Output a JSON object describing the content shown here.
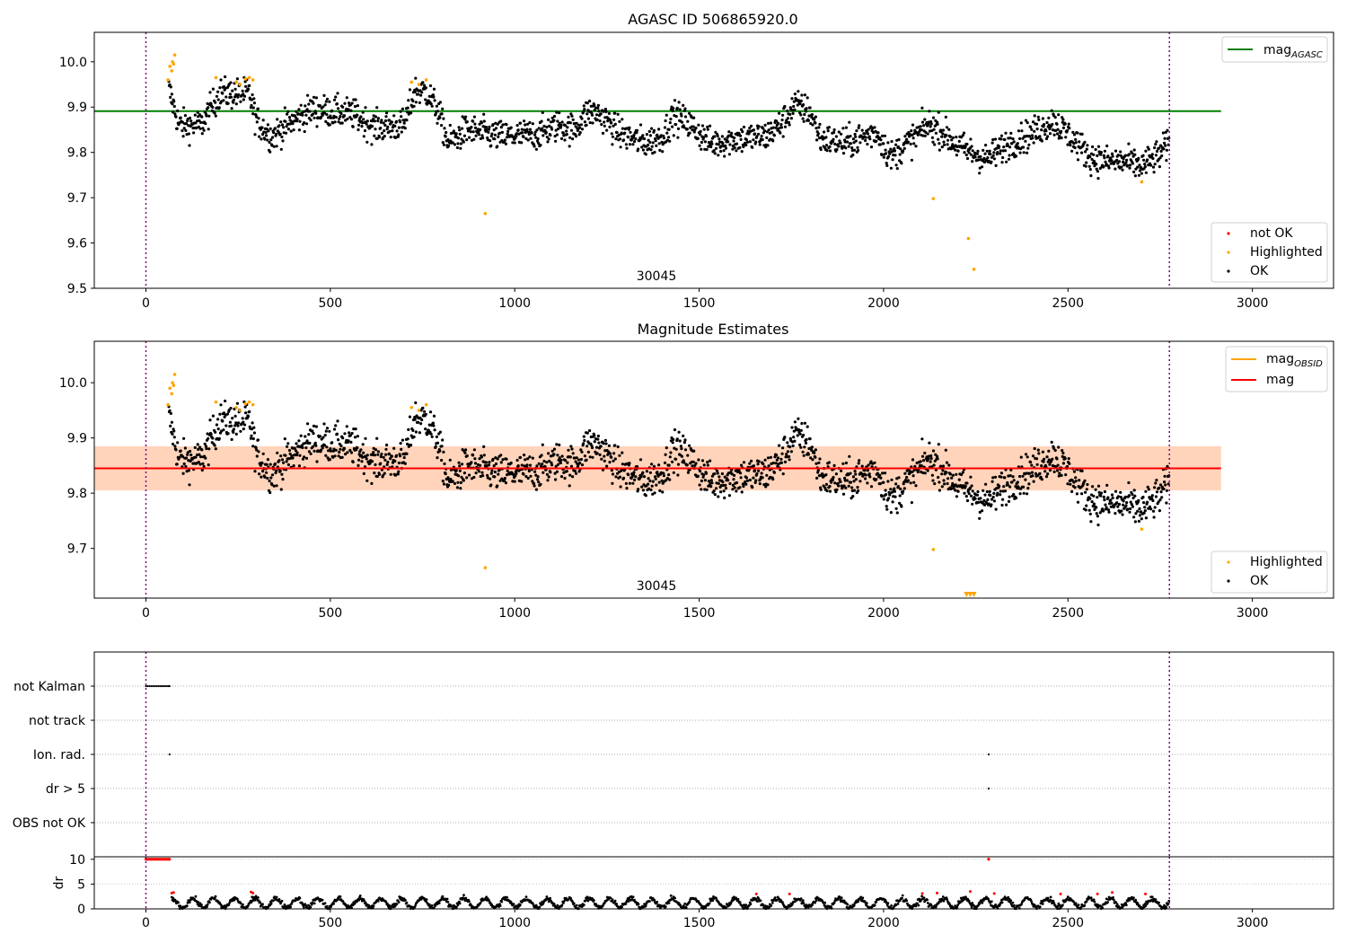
{
  "figure": {
    "obsid_label": "30045"
  },
  "chart_data": [
    {
      "type": "scatter",
      "title": "AGASC ID 506865920.0",
      "xlim": [
        -140,
        3220
      ],
      "ylim": [
        9.5,
        10.065
      ],
      "x_ticks": [
        0,
        500,
        1000,
        1500,
        2000,
        2500,
        3000
      ],
      "y_ticks": [
        9.5,
        9.6,
        9.7,
        9.8,
        9.9,
        10.0
      ],
      "y_tick_labels": [
        "9.5",
        "9.6",
        "9.7",
        "9.8",
        "9.9",
        "10.0"
      ],
      "vlines": [
        0,
        2775
      ],
      "hline": {
        "name": "mag_AGASC",
        "value": 9.891,
        "x_range": [
          -140,
          2915
        ],
        "color": "#008000"
      },
      "legend_upper": [
        {
          "label": "mag",
          "sub": "AGASC",
          "color": "#008000",
          "kind": "line"
        }
      ],
      "legend_lower": [
        {
          "label": "not OK",
          "color": "#ff0000",
          "kind": "dot"
        },
        {
          "label": "Highlighted",
          "color": "#ffa500",
          "kind": "dot"
        },
        {
          "label": "OK",
          "color": "#000000",
          "kind": "dot"
        }
      ],
      "highlighted_points": [
        [
          60,
          9.96
        ],
        [
          65,
          9.99
        ],
        [
          70,
          9.98
        ],
        [
          72,
          10.0
        ],
        [
          75,
          9.995
        ],
        [
          78,
          10.015
        ],
        [
          190,
          9.965
        ],
        [
          245,
          9.955
        ],
        [
          255,
          9.95
        ],
        [
          270,
          9.962
        ],
        [
          280,
          9.965
        ],
        [
          290,
          9.96
        ],
        [
          720,
          9.955
        ],
        [
          740,
          9.95
        ],
        [
          760,
          9.96
        ],
        [
          920,
          9.665
        ],
        [
          2135,
          9.698
        ],
        [
          2230,
          9.61
        ],
        [
          2245,
          9.542
        ],
        [
          2700,
          9.735
        ]
      ]
    },
    {
      "type": "scatter",
      "title": "Magnitude Estimates",
      "xlim": [
        -140,
        3220
      ],
      "ylim": [
        9.61,
        10.075
      ],
      "x_ticks": [
        0,
        500,
        1000,
        1500,
        2000,
        2500,
        3000
      ],
      "y_ticks": [
        9.7,
        9.8,
        9.9,
        10.0
      ],
      "y_tick_labels": [
        "9.7",
        "9.8",
        "9.9",
        "10.0"
      ],
      "vlines": [
        0,
        2775
      ],
      "mag_line": {
        "name": "mag",
        "value": 9.845,
        "color": "#ff0000"
      },
      "mag_band": {
        "lo": 9.805,
        "hi": 9.885
      },
      "mag_obsid_band": {
        "lo": 9.805,
        "hi": 9.885,
        "x_range": [
          -140,
          2915
        ]
      },
      "legend_upper": [
        {
          "label": "mag",
          "sub": "OBSID",
          "color": "#ffa500",
          "kind": "line"
        },
        {
          "label": "mag",
          "sub": "",
          "color": "#ff0000",
          "kind": "line"
        }
      ],
      "legend_lower": [
        {
          "label": "Highlighted",
          "color": "#ffa500",
          "kind": "dot"
        },
        {
          "label": "OK",
          "color": "#000000",
          "kind": "dot"
        }
      ],
      "highlighted_points": [
        [
          60,
          9.96
        ],
        [
          65,
          9.99
        ],
        [
          70,
          9.98
        ],
        [
          72,
          10.0
        ],
        [
          75,
          9.995
        ],
        [
          78,
          10.015
        ],
        [
          190,
          9.965
        ],
        [
          245,
          9.955
        ],
        [
          255,
          9.95
        ],
        [
          270,
          9.962
        ],
        [
          280,
          9.965
        ],
        [
          290,
          9.96
        ],
        [
          720,
          9.955
        ],
        [
          740,
          9.95
        ],
        [
          760,
          9.96
        ],
        [
          920,
          9.665
        ],
        [
          2135,
          9.698
        ],
        [
          2700,
          9.735
        ]
      ],
      "offscale_markers": [
        2225,
        2235,
        2245
      ]
    },
    {
      "type": "scatter",
      "title": "",
      "flags": [
        "not Kalman",
        "not track",
        "Ion. rad.",
        "dr > 5",
        "OBS not OK"
      ],
      "flag_points": {
        "not Kalman": [
          0,
          5,
          10,
          15,
          20,
          25,
          30,
          35,
          40,
          45,
          50,
          55,
          60,
          64
        ],
        "not track": [],
        "Ion. rad.": [
          64,
          2285
        ],
        "dr > 5": [
          2285
        ],
        "OBS not OK": []
      },
      "xlim": [
        -140,
        3220
      ],
      "vlines": [
        0,
        2775
      ]
    },
    {
      "type": "scatter",
      "title": "",
      "ylabel": "dr",
      "xlim": [
        -140,
        3220
      ],
      "ylim": [
        0,
        10.5
      ],
      "y_ticks": [
        0,
        5,
        10
      ],
      "y_tick_labels": [
        "0",
        "5",
        "10"
      ],
      "x_ticks": [
        0,
        500,
        1000,
        1500,
        2000,
        2500,
        3000
      ],
      "vlines": [
        0,
        2775
      ],
      "high_dr_points": [
        [
          0,
          10
        ],
        [
          5,
          10
        ],
        [
          10,
          10
        ],
        [
          15,
          10
        ],
        [
          20,
          10
        ],
        [
          25,
          10
        ],
        [
          30,
          10
        ],
        [
          35,
          10
        ],
        [
          40,
          10
        ],
        [
          45,
          10
        ],
        [
          50,
          10
        ],
        [
          55,
          10
        ],
        [
          60,
          10
        ],
        [
          64,
          10
        ],
        [
          2285,
          10
        ]
      ],
      "red_points": [
        [
          70,
          3.2
        ],
        [
          75,
          3.3
        ],
        [
          285,
          3.4
        ],
        [
          290,
          3.2
        ],
        [
          1655,
          3.0
        ],
        [
          1745,
          3.0
        ],
        [
          2105,
          3.1
        ],
        [
          2145,
          3.2
        ],
        [
          2235,
          3.5
        ],
        [
          2300,
          3.1
        ],
        [
          2480,
          3.0
        ],
        [
          2580,
          3.0
        ],
        [
          2620,
          3.3
        ],
        [
          2710,
          3.0
        ]
      ]
    }
  ]
}
